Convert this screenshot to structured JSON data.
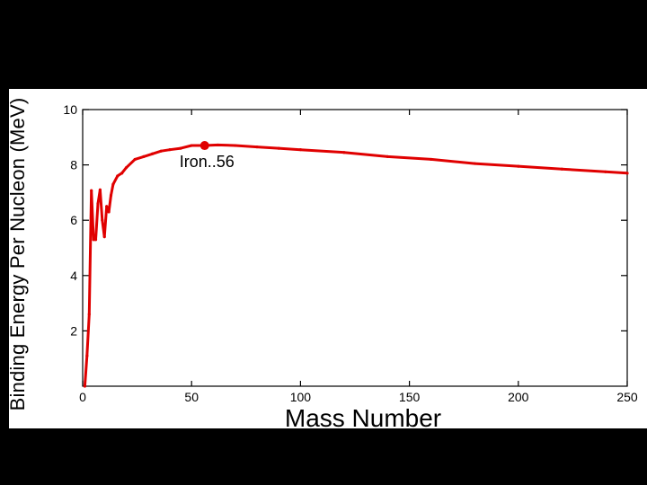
{
  "chart_data": {
    "type": "line",
    "xlabel": "Mass Number",
    "ylabel": "Binding Energy Per Nucleon (MeV)",
    "xlim": [
      0,
      250
    ],
    "ylim": [
      0,
      10
    ],
    "x_ticks": [
      0,
      50,
      100,
      150,
      200,
      250
    ],
    "y_ticks": [
      2,
      4,
      6,
      8,
      10
    ],
    "grid": false,
    "line_color": "#e00000",
    "series": [
      {
        "x": [
          1,
          2,
          3,
          4,
          5,
          6,
          7,
          8,
          9,
          10,
          11,
          12,
          13,
          14,
          16,
          18,
          20,
          24,
          28,
          32,
          36,
          40,
          45,
          50,
          56,
          62,
          70,
          80,
          90,
          100,
          120,
          140,
          160,
          180,
          200,
          220,
          240,
          250
        ],
        "values": [
          0.0,
          1.1,
          2.6,
          7.07,
          5.3,
          5.3,
          6.6,
          7.1,
          6.0,
          5.4,
          6.5,
          6.3,
          6.9,
          7.3,
          7.6,
          7.7,
          7.9,
          8.2,
          8.3,
          8.4,
          8.5,
          8.55,
          8.6,
          8.7,
          8.7,
          8.72,
          8.7,
          8.65,
          8.6,
          8.55,
          8.45,
          8.3,
          8.2,
          8.05,
          7.95,
          7.85,
          7.75,
          7.7
        ]
      }
    ],
    "annotations": [
      {
        "text": "Iron..56",
        "x": 56,
        "y": 8.7
      }
    ]
  }
}
